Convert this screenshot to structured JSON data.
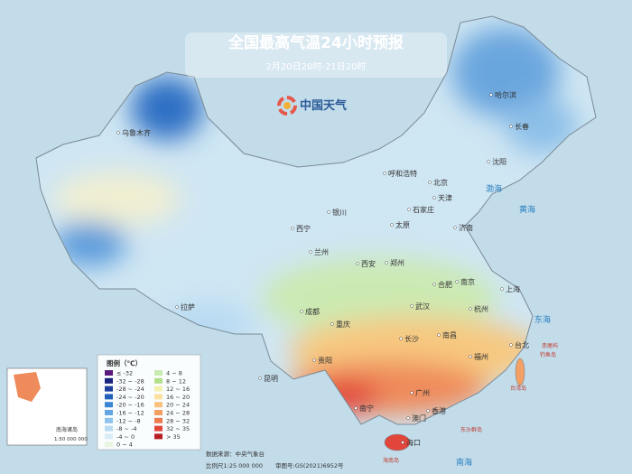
{
  "header": {
    "title": "全国最高气温24小时预报",
    "subtitle": "2月20日20时-21日20时",
    "logo": "中国天气"
  },
  "cities": [
    "乌鲁木齐",
    "哈尔滨",
    "长春",
    "沈阳",
    "呼和浩特",
    "北京",
    "天津",
    "石家庄",
    "太原",
    "济南",
    "银川",
    "西宁",
    "兰州",
    "西安",
    "郑州",
    "合肥",
    "南京",
    "上海",
    "杭州",
    "武汉",
    "成都",
    "重庆",
    "长沙",
    "南昌",
    "福州",
    "台北",
    "贵阳",
    "昆明",
    "南宁",
    "广州",
    "香港",
    "澳门",
    "海口",
    "拉萨"
  ],
  "seas": [
    "渤海",
    "黄海",
    "东海",
    "南海"
  ],
  "islands": [
    "台湾岛",
    "赤尾屿",
    "钓鱼岛",
    "东沙群岛",
    "海南岛"
  ],
  "inset": {
    "label": "南海诸岛",
    "scale": "1:50 000 000"
  },
  "legend": {
    "title": "图例（℃）",
    "items": [
      {
        "label": "≤ -32",
        "color": "#5b1a7a"
      },
      {
        "label": "-32 ~ -28",
        "color": "#1a237e"
      },
      {
        "label": "-28 ~ -24",
        "color": "#1e3f9a"
      },
      {
        "label": "-24 ~ -20",
        "color": "#2160b8"
      },
      {
        "label": "-20 ~ -16",
        "color": "#3a86d4"
      },
      {
        "label": "-16 ~ -12",
        "color": "#63a6e2"
      },
      {
        "label": "-12 ~ -8",
        "color": "#8fc2ec"
      },
      {
        "label": "-8 ~ -4",
        "color": "#b8daf2"
      },
      {
        "label": "-4 ~ 0",
        "color": "#daecf7"
      },
      {
        "label": "0 ~ 4",
        "color": "#e9f6e1"
      },
      {
        "label": "4 ~ 8",
        "color": "#c9eab0"
      },
      {
        "label": "8 ~ 12",
        "color": "#b4e08a"
      },
      {
        "label": "12 ~ 16",
        "color": "#f3f1b0"
      },
      {
        "label": "16 ~ 20",
        "color": "#fbe0a0"
      },
      {
        "label": "20 ~ 24",
        "color": "#f8c27e"
      },
      {
        "label": "24 ~ 28",
        "color": "#f4a064"
      },
      {
        "label": "28 ~ 32",
        "color": "#ee7a52"
      },
      {
        "label": "32 ~ 35",
        "color": "#e2463a"
      },
      {
        "label": "> 35",
        "color": "#b81e24"
      }
    ]
  },
  "footer": {
    "source": "数据来源：中央气象台",
    "scale": "比例尺1:25 000 000",
    "review_number": "审图号:GS(2021)6952号"
  }
}
